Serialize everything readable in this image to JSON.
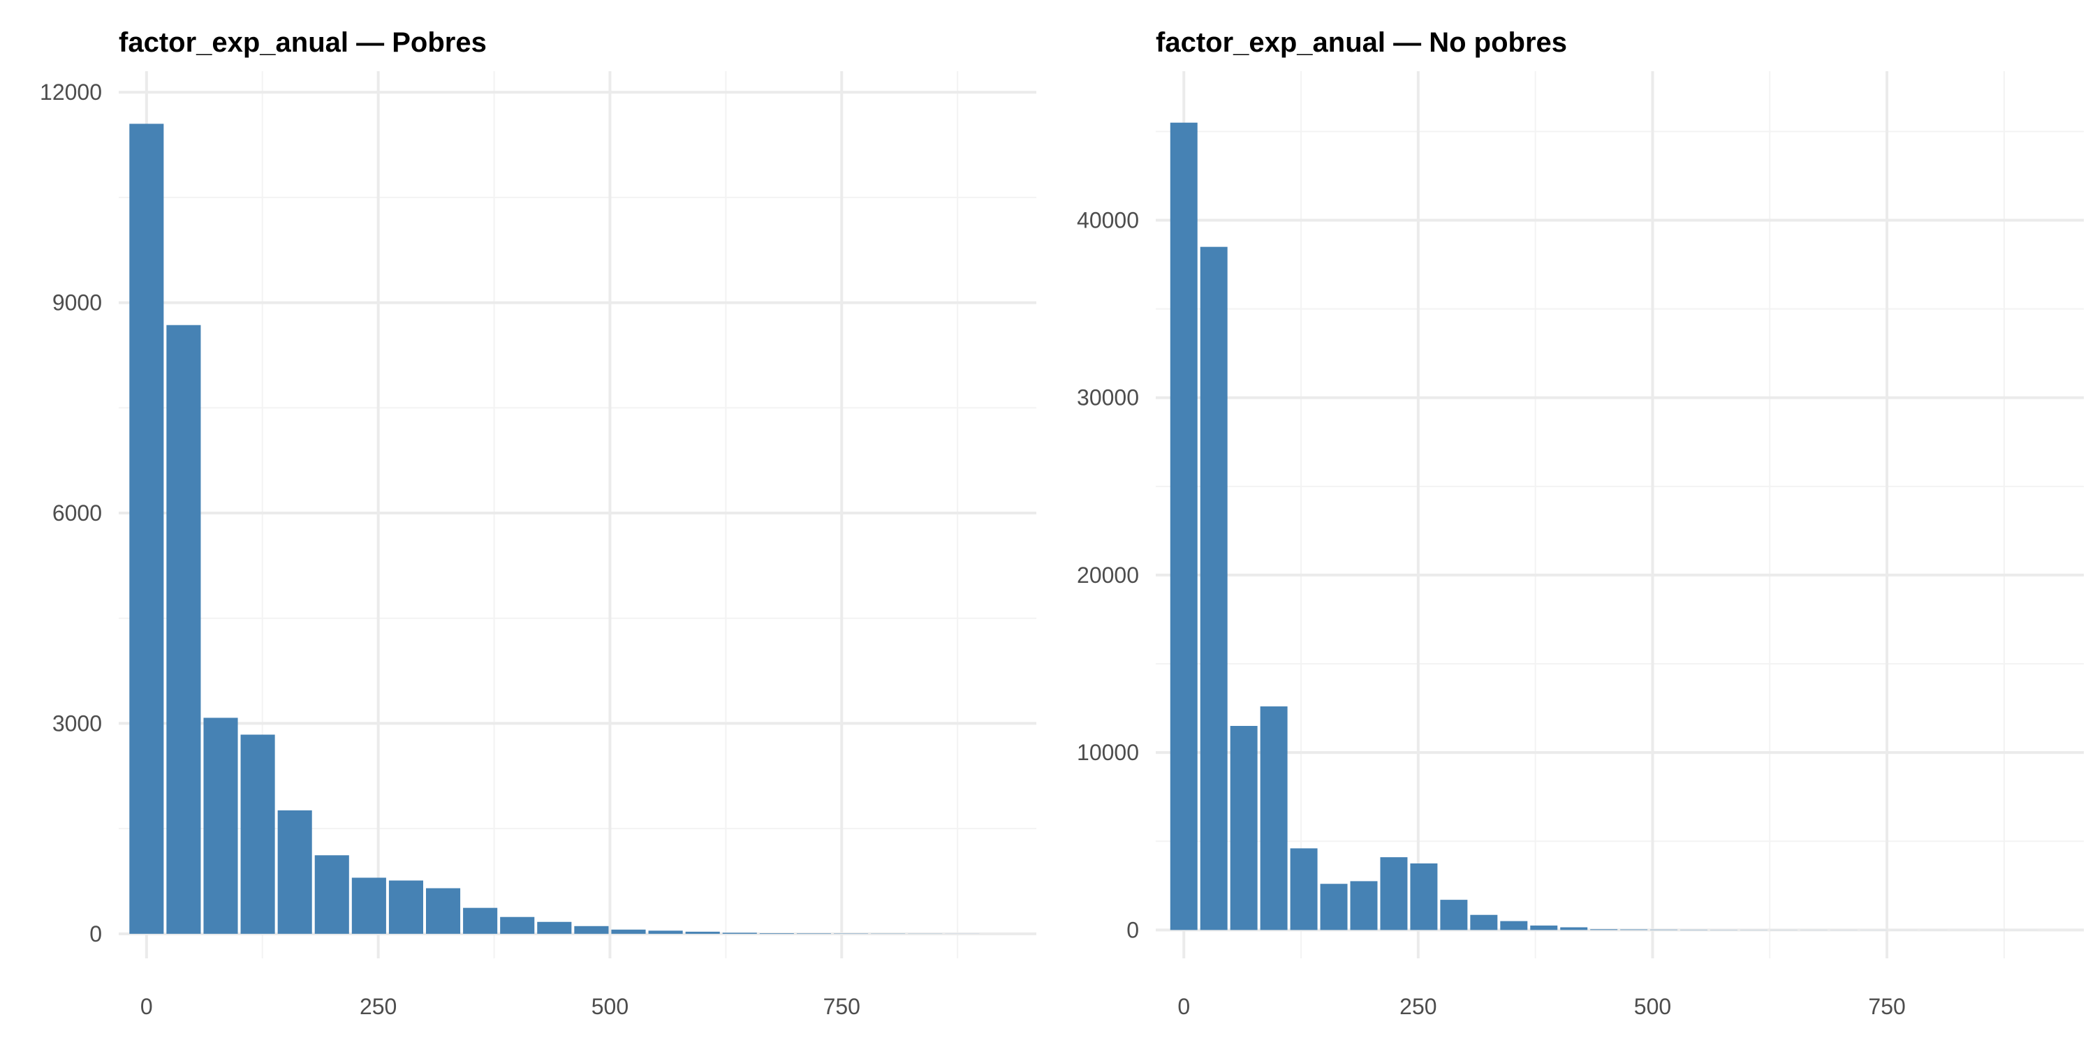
{
  "chart_data": [
    {
      "type": "bar",
      "title": "factor_exp_anual — Pobres",
      "xlabel": "",
      "ylabel": "",
      "bin_width": 40,
      "x": [
        0,
        40,
        80,
        120,
        160,
        200,
        240,
        280,
        320,
        360,
        400,
        440,
        480,
        520,
        560,
        600,
        640,
        680,
        720,
        760,
        800,
        840,
        880
      ],
      "values": [
        11550,
        8680,
        3080,
        2840,
        1760,
        1120,
        800,
        760,
        650,
        370,
        240,
        170,
        110,
        60,
        45,
        30,
        15,
        8,
        6,
        4,
        3,
        2,
        1
      ],
      "xlim": [
        -30,
        960
      ],
      "ylim": [
        -350,
        12300
      ],
      "x_ticks": [
        0,
        250,
        500,
        750
      ],
      "x_tick_labels": [
        "0",
        "250",
        "500",
        "750"
      ],
      "y_ticks": [
        0,
        3000,
        6000,
        9000,
        12000
      ],
      "y_tick_labels": [
        "0",
        "3000",
        "6000",
        "9000",
        "12000"
      ],
      "grid": true,
      "bar_color": "#4682B4"
    },
    {
      "type": "bar",
      "title": "factor_exp_anual — No pobres",
      "xlabel": "",
      "ylabel": "",
      "bin_width": 32,
      "x": [
        0,
        32,
        64,
        96,
        128,
        160,
        192,
        224,
        256,
        288,
        320,
        352,
        384,
        416,
        448,
        480,
        512,
        544,
        576,
        608,
        640,
        672,
        704,
        736,
        768,
        800,
        832,
        864,
        896
      ],
      "values": [
        45500,
        38500,
        11500,
        12600,
        4600,
        2600,
        2750,
        4100,
        3750,
        1700,
        850,
        500,
        250,
        150,
        40,
        30,
        20,
        15,
        10,
        8,
        6,
        5,
        4,
        3,
        2,
        2,
        1,
        1,
        1
      ],
      "xlim": [
        -30,
        960
      ],
      "ylim": [
        -1600,
        48400
      ],
      "x_ticks": [
        0,
        250,
        500,
        750
      ],
      "x_tick_labels": [
        "0",
        "250",
        "500",
        "750"
      ],
      "y_ticks": [
        0,
        10000,
        20000,
        30000,
        40000
      ],
      "y_tick_labels": [
        "0",
        "10000",
        "20000",
        "30000",
        "40000"
      ],
      "grid": true,
      "bar_color": "#4682B4"
    }
  ]
}
